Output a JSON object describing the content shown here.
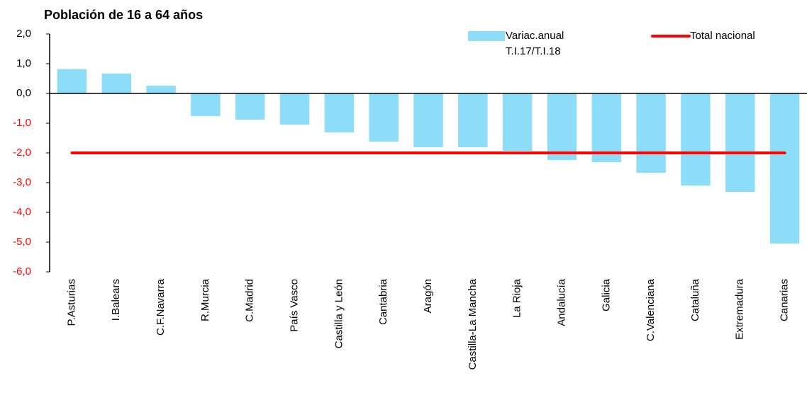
{
  "chart_data": {
    "type": "bar",
    "title": "Población de 16 a 64 años",
    "categories": [
      "P.Asturias",
      "I.Balears",
      "C.F.Navarra",
      "R.Murcia",
      "C.Madrid",
      "País Vasco",
      "Castilla y León",
      "Cantabria",
      "Aragón",
      "Castilla-La Mancha",
      "La Rioja",
      "Andalucía",
      "Galicia",
      "C.Valenciana",
      "Cataluña",
      "Extremadura",
      "Canarias"
    ],
    "series": [
      {
        "name": "Variac.anual T.I.17/T.I.18",
        "type": "bar",
        "color": "#8ddcf8",
        "values": [
          0.82,
          0.67,
          0.26,
          -0.76,
          -0.88,
          -1.05,
          -1.31,
          -1.62,
          -1.81,
          -1.81,
          -1.93,
          -2.24,
          -2.31,
          -2.67,
          -3.1,
          -3.31,
          -5.05
        ]
      },
      {
        "name": "Total nacional",
        "type": "line",
        "color": "#ff0000",
        "values": [
          -2.0,
          -2.0,
          -2.0,
          -2.0,
          -2.0,
          -2.0,
          -2.0,
          -2.0,
          -2.0,
          -2.0,
          -2.0,
          -2.0,
          -2.0,
          -2.0,
          -2.0,
          -2.0,
          -2.0
        ]
      }
    ],
    "ylim": [
      -6,
      2
    ],
    "yticks": [
      {
        "value": 2,
        "label": "2,0"
      },
      {
        "value": 1,
        "label": "1,0"
      },
      {
        "value": 0,
        "label": "0,0"
      },
      {
        "value": -1,
        "label": "-1,0"
      },
      {
        "value": -2,
        "label": "-2,0"
      },
      {
        "value": -3,
        "label": "-3,0"
      },
      {
        "value": -4,
        "label": "-4,0"
      },
      {
        "value": -5,
        "label": "-5,0"
      },
      {
        "value": -6,
        "label": "-6,0"
      }
    ],
    "grid": false
  }
}
